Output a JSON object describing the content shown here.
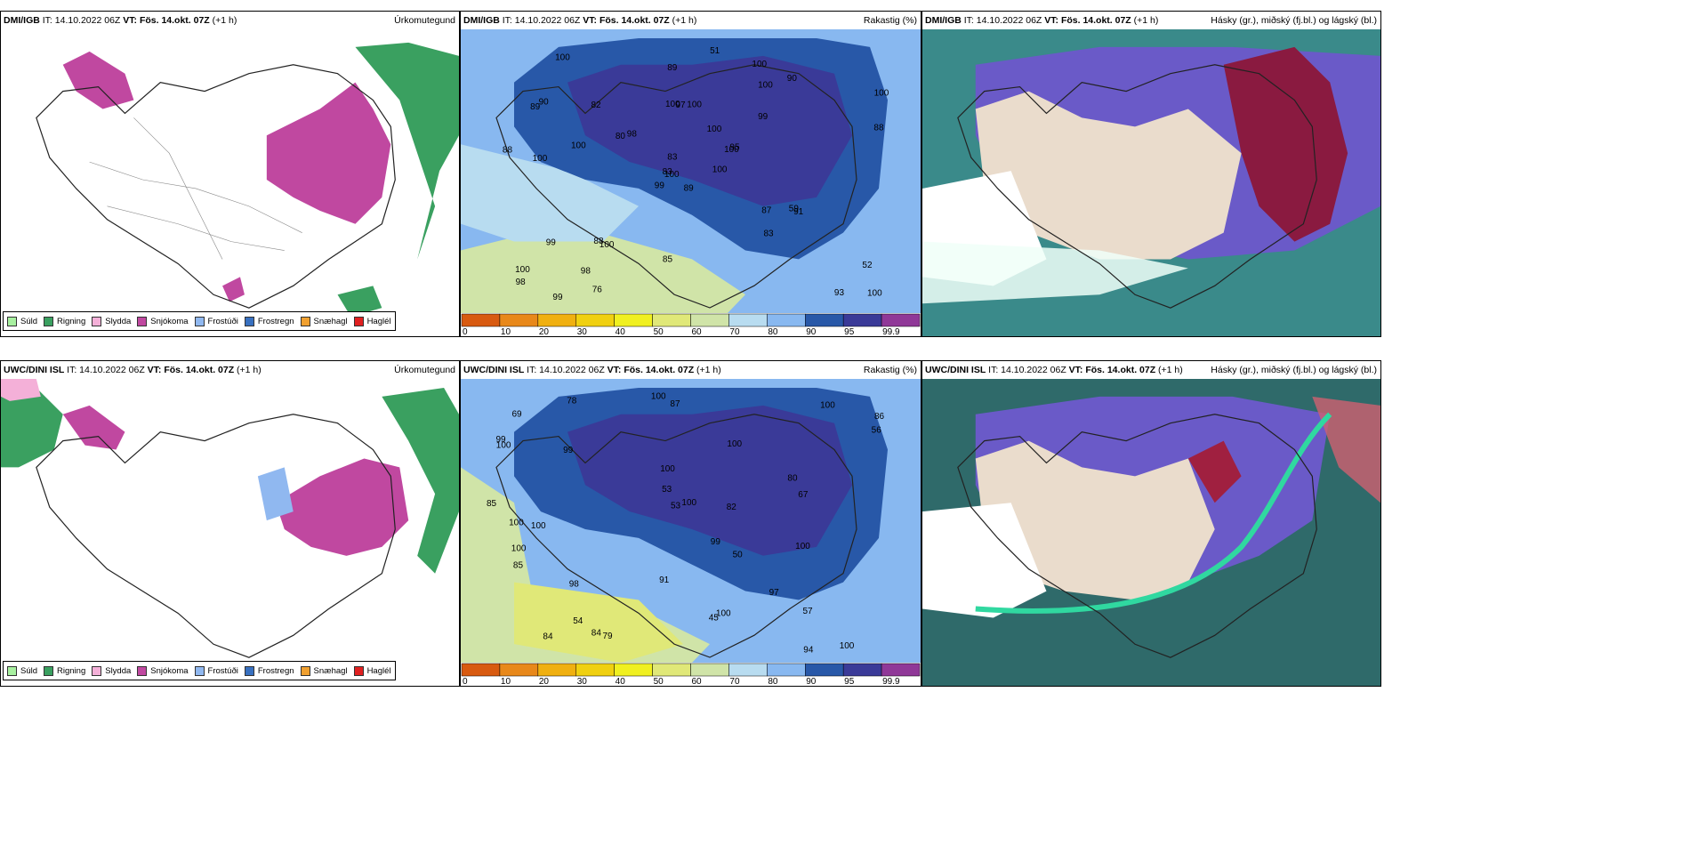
{
  "rows": [
    {
      "model": "DMI/IGB",
      "it": "IT: 14.10.2022 06Z",
      "vt_label": "VT:",
      "vt": "Fös. 14.okt. 07Z",
      "lead": "(+1 h)",
      "panel_titles": [
        "Úrkomutegund",
        "Rakastig (%)",
        "Hásky (gr.), miðský (fj.bl.) og lágský (bl.)"
      ],
      "rh_labels": [
        "89",
        "89",
        "100",
        "100",
        "100",
        "100",
        "100",
        "100",
        "100",
        "100",
        "100",
        "100",
        "100",
        "100",
        "99",
        "99",
        "99",
        "100",
        "100",
        "99",
        "98",
        "98",
        "98",
        "97",
        "95",
        "91",
        "90",
        "89",
        "88",
        "87",
        "88",
        "83",
        "85",
        "83",
        "82",
        "90",
        "88",
        "93",
        "52",
        "59",
        "51",
        "80",
        "100",
        "83",
        "76"
      ]
    },
    {
      "model": "UWC/DINI ISL",
      "it": "IT: 14.10.2022 06Z",
      "vt_label": "VT:",
      "vt": "Fös. 14.okt. 07Z",
      "lead": "(+1 h)",
      "panel_titles": [
        "Úrkomutegund",
        "Rakastig (%)",
        "Hásky (gr.), miðský (fj.bl.) og lágský (bl.)"
      ],
      "rh_labels": [
        "85",
        "87",
        "80",
        "86",
        "99",
        "100",
        "100",
        "100",
        "100",
        "100",
        "100",
        "100",
        "100",
        "100",
        "99",
        "98",
        "100",
        "100",
        "99",
        "91",
        "97",
        "57",
        "56",
        "53",
        "54",
        "53",
        "50",
        "78",
        "79",
        "45",
        "100",
        "94",
        "82",
        "84",
        "84",
        "85",
        "67",
        "69"
      ]
    }
  ],
  "precip_legend": [
    {
      "label": "Súld",
      "color": "#a8f0a0"
    },
    {
      "label": "Rigning",
      "color": "#3aa060"
    },
    {
      "label": "Slydda",
      "color": "#f4b0d8"
    },
    {
      "label": "Snjókoma",
      "color": "#c048a0"
    },
    {
      "label": "Frostúði",
      "color": "#90b8f0"
    },
    {
      "label": "Frostregn",
      "color": "#3870c0"
    },
    {
      "label": "Snæhagl",
      "color": "#f0a030"
    },
    {
      "label": "Haglél",
      "color": "#e02020"
    }
  ],
  "rh_colorbar": {
    "ticks": [
      "0",
      "10",
      "20",
      "30",
      "40",
      "50",
      "60",
      "70",
      "80",
      "90",
      "95",
      "99.9"
    ],
    "colors": [
      "#d85a10",
      "#e8881a",
      "#f0b010",
      "#f0d010",
      "#f0f020",
      "#e0e878",
      "#d0e4a8",
      "#b8dcf0",
      "#88b8f0",
      "#2858a8",
      "#3a3a98",
      "#903898"
    ]
  }
}
